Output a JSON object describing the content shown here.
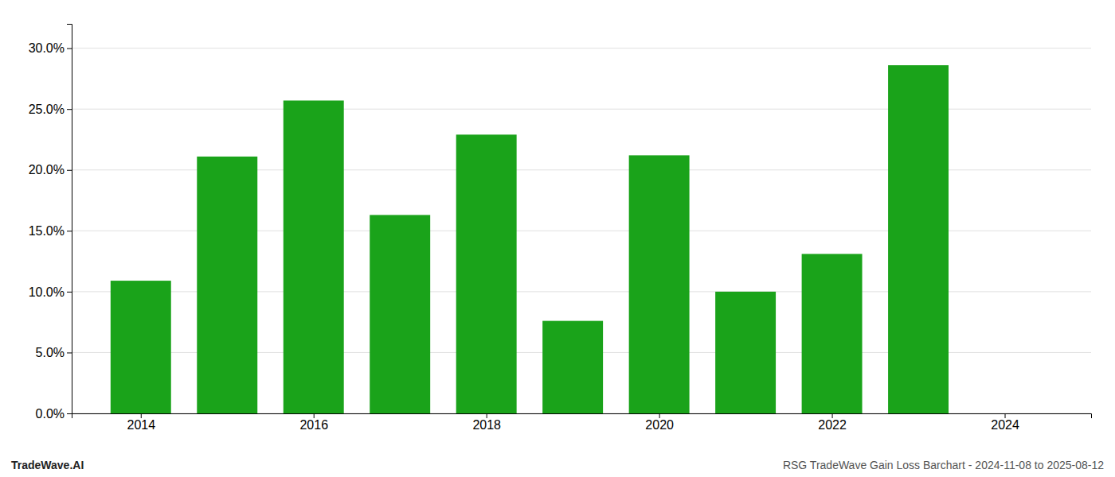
{
  "chart_data": {
    "type": "bar",
    "x": [
      2014,
      2015,
      2016,
      2017,
      2018,
      2019,
      2020,
      2021,
      2022,
      2023
    ],
    "values": [
      0.109,
      0.211,
      0.257,
      0.163,
      0.229,
      0.076,
      0.212,
      0.1,
      0.131,
      0.286
    ],
    "color": "#1aa31a",
    "xlim": [
      2013.2,
      2025.0
    ],
    "xticks": [
      2014,
      2016,
      2018,
      2020,
      2022,
      2024
    ],
    "ylim": [
      0.0,
      0.32
    ],
    "yticks": [
      {
        "value": 0.0,
        "label": "0.0%"
      },
      {
        "value": 0.05,
        "label": "5.0%"
      },
      {
        "value": 0.1,
        "label": "10.0%"
      },
      {
        "value": 0.15,
        "label": "15.0%"
      },
      {
        "value": 0.2,
        "label": "20.0%"
      },
      {
        "value": 0.25,
        "label": "25.0%"
      },
      {
        "value": 0.3,
        "label": "30.0%"
      }
    ],
    "grid": true,
    "annotations": [
      "TradeWave.AI",
      "RSG TradeWave Gain Loss Barchart - 2024-11-08 to 2025-08-12"
    ]
  }
}
